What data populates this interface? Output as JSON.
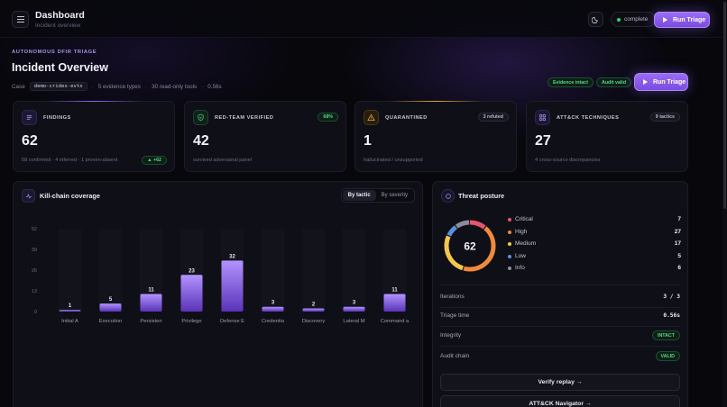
{
  "header": {
    "title": "Dashboard",
    "subtitle": "Incident overview",
    "status": "complete",
    "run_label": "Run Triage"
  },
  "hero": {
    "eyebrow": "AUTONOMOUS DFIR TRIAGE",
    "title": "Incident Overview",
    "case_label": "Case",
    "case_id": "demo-cridex-evtx",
    "evidence": "5 evidence types",
    "tools": "30 read-only tools",
    "duration": "0.56s",
    "tags": [
      "Evidence intact",
      "Audit valid"
    ],
    "run_label": "Run Triage"
  },
  "stats": [
    {
      "label": "FINDINGS",
      "value": "62",
      "sub": "58 confirmed · 4 inferred · 1 proven-absent",
      "delta": "▲ +62",
      "icon": "list-icon",
      "accent": "#8b6cf0"
    },
    {
      "label": "RED-TEAM VERIFIED",
      "value": "42",
      "sub": "survived adversarial panel",
      "badge": "68%",
      "icon": "shield-check-icon",
      "accent": "#33d17a"
    },
    {
      "label": "QUARANTINED",
      "value": "1",
      "sub": "hallucinated / unsupported",
      "badge": "3 refuted",
      "icon": "warning-icon",
      "accent": "#e3a63a"
    },
    {
      "label": "ATT&CK TECHNIQUES",
      "value": "27",
      "sub": "4 cross-source discrepancies",
      "badge": "9 tactics",
      "icon": "grid-icon",
      "accent": "#8b6cf0"
    }
  ],
  "killchain": {
    "title": "Kill-chain coverage",
    "toggle": [
      "By tactic",
      "By severity"
    ],
    "active_toggle": 0
  },
  "chart_data": {
    "type": "bar",
    "categories": [
      "Initial A",
      "Execution",
      "Persisten",
      "Privilege",
      "Defense E",
      "Credentia",
      "Discovery",
      "Lateral M",
      "Command a"
    ],
    "values": [
      1,
      5,
      11,
      23,
      32,
      3,
      2,
      3,
      11
    ],
    "yticks": [
      0,
      13,
      26,
      39,
      52
    ],
    "ylim": [
      0,
      52
    ],
    "title": "",
    "xlabel": "",
    "ylabel": "",
    "grid": false,
    "colors": {
      "bar_top": "#b293ff",
      "bar_bottom": "#5a33b8"
    }
  },
  "threat": {
    "title": "Threat posture",
    "total": "62",
    "levels": [
      {
        "name": "Critical",
        "value": 7,
        "color": "#e5566b"
      },
      {
        "name": "High",
        "value": 27,
        "color": "#f08a3c"
      },
      {
        "name": "Medium",
        "value": 17,
        "color": "#f2c84b"
      },
      {
        "name": "Low",
        "value": 5,
        "color": "#5b8fe0"
      },
      {
        "name": "Info",
        "value": 6,
        "color": "#8e8b9c"
      }
    ],
    "iterations_label": "Iterations",
    "iterations": "3 / 3",
    "time_label": "Triage time",
    "time": "0.56s",
    "integrity_label": "Integrity",
    "integrity": "INTACT",
    "audit_label": "Audit chain",
    "audit": "VALID",
    "verify_label": "Verify replay →",
    "attack_label": "ATT&CK Navigator →"
  }
}
